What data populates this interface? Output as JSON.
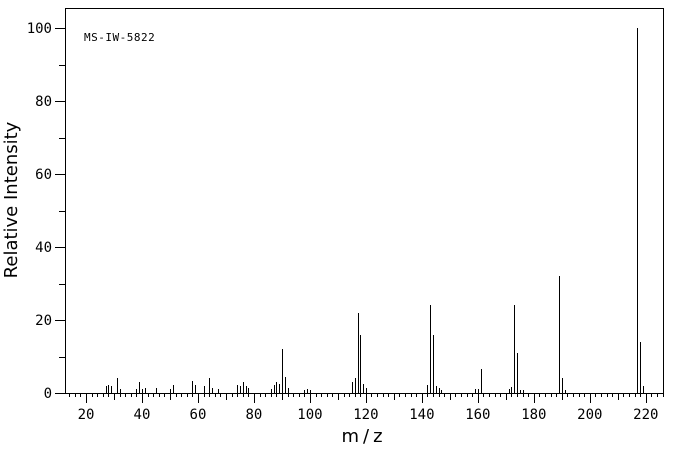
{
  "colors": {
    "foreground": "#000000",
    "background": "#ffffff"
  },
  "chart_data": {
    "type": "bar",
    "subtype": "mass-spectrum",
    "annotation": "MS-IW-5822",
    "xlabel": "m/z",
    "ylabel": "Relative Intensity",
    "xlim": [
      12.5,
      226.5
    ],
    "ylim": [
      0,
      100
    ],
    "x_major_ticks": [
      20,
      40,
      60,
      80,
      100,
      120,
      140,
      160,
      180,
      200,
      220
    ],
    "x_minor_tick_step": 2,
    "y_major_ticks": [
      0,
      20,
      40,
      60,
      80,
      100
    ],
    "y_minor_tick_step": 10,
    "grid": false,
    "legend": false,
    "peaks": [
      [
        27,
        2.0
      ],
      [
        28,
        2.2
      ],
      [
        29,
        2.0
      ],
      [
        31,
        4.0
      ],
      [
        32,
        1.2
      ],
      [
        38,
        1.2
      ],
      [
        39,
        3.0
      ],
      [
        40,
        1.2
      ],
      [
        41,
        1.5
      ],
      [
        45,
        1.3
      ],
      [
        50,
        1.0
      ],
      [
        51,
        2.2
      ],
      [
        58,
        3.2
      ],
      [
        59,
        2.2
      ],
      [
        62,
        2.0
      ],
      [
        64,
        4.2
      ],
      [
        65,
        1.5
      ],
      [
        67,
        1.0
      ],
      [
        74,
        2.2
      ],
      [
        75,
        2.0
      ],
      [
        76,
        3.0
      ],
      [
        77,
        2.0
      ],
      [
        78,
        1.5
      ],
      [
        86,
        1.2
      ],
      [
        87,
        2.3
      ],
      [
        88,
        3.0
      ],
      [
        89,
        2.5
      ],
      [
        90,
        12.0
      ],
      [
        91,
        4.4
      ],
      [
        92,
        1.5
      ],
      [
        98,
        0.8
      ],
      [
        99,
        1.0
      ],
      [
        100,
        0.8
      ],
      [
        115,
        3.0
      ],
      [
        116,
        4.2
      ],
      [
        117,
        22.0
      ],
      [
        118,
        16.0
      ],
      [
        119,
        2.5
      ],
      [
        120,
        1.5
      ],
      [
        142,
        2.2
      ],
      [
        143,
        24.0
      ],
      [
        144,
        16.0
      ],
      [
        145,
        2.0
      ],
      [
        146,
        1.4
      ],
      [
        147,
        0.8
      ],
      [
        159,
        1.0
      ],
      [
        160,
        1.0
      ],
      [
        161,
        6.5
      ],
      [
        171,
        1.1
      ],
      [
        172,
        1.7
      ],
      [
        173,
        24.0
      ],
      [
        174,
        11.0
      ],
      [
        175,
        0.8
      ],
      [
        176,
        0.8
      ],
      [
        189,
        32.0
      ],
      [
        190,
        4.0
      ],
      [
        191,
        0.8
      ],
      [
        217,
        100.0
      ],
      [
        218,
        14.0
      ],
      [
        219,
        1.8
      ]
    ]
  }
}
